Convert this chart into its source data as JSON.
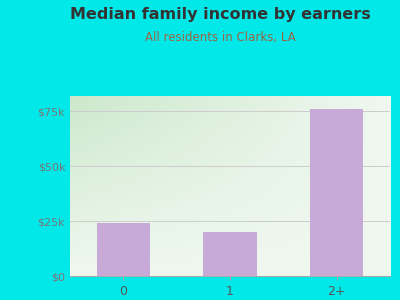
{
  "title": "Median family income by earners",
  "subtitle": "All residents in Clarks, LA",
  "categories": [
    "0",
    "1",
    "2+"
  ],
  "values": [
    24000,
    20000,
    76000
  ],
  "bar_color": "#c8aad8",
  "title_color": "#333333",
  "subtitle_color": "#996644",
  "background_color": "#00e8e8",
  "grad_top_left": "#cce8cc",
  "grad_bottom_right": "#f0f8f0",
  "yticks": [
    0,
    25000,
    50000,
    75000
  ],
  "ytick_labels": [
    "$0",
    "$25k",
    "$50k",
    "$75k"
  ],
  "ylim": [
    0,
    82000
  ],
  "grid_color": "#cccccc",
  "tick_label_color": "#777777",
  "xtick_color": "#555555"
}
